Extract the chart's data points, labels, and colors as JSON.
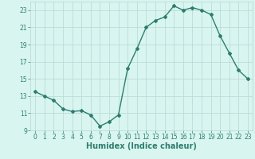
{
  "x": [
    0,
    1,
    2,
    3,
    4,
    5,
    6,
    7,
    8,
    9,
    10,
    11,
    12,
    13,
    14,
    15,
    16,
    17,
    18,
    19,
    20,
    21,
    22,
    23
  ],
  "y": [
    13.5,
    13.0,
    12.5,
    11.5,
    11.2,
    11.3,
    10.8,
    9.5,
    10.0,
    10.8,
    16.2,
    18.5,
    21.0,
    21.8,
    22.2,
    23.5,
    23.0,
    23.3,
    23.0,
    22.5,
    20.0,
    18.0,
    16.0,
    15.0
  ],
  "line_color": "#2e7d6e",
  "marker": "D",
  "marker_size": 2,
  "bg_color": "#d8f5f0",
  "grid_color": "#b8d8d2",
  "xlabel": "Humidex (Indice chaleur)",
  "xlim": [
    -0.5,
    23.5
  ],
  "ylim": [
    9,
    24
  ],
  "yticks": [
    9,
    11,
    13,
    15,
    17,
    19,
    21,
    23
  ],
  "xticks": [
    0,
    1,
    2,
    3,
    4,
    5,
    6,
    7,
    8,
    9,
    10,
    11,
    12,
    13,
    14,
    15,
    16,
    17,
    18,
    19,
    20,
    21,
    22,
    23
  ],
  "tick_color": "#2e7d6e",
  "tick_fontsize": 5.5,
  "xlabel_fontsize": 7,
  "linewidth": 1.0
}
